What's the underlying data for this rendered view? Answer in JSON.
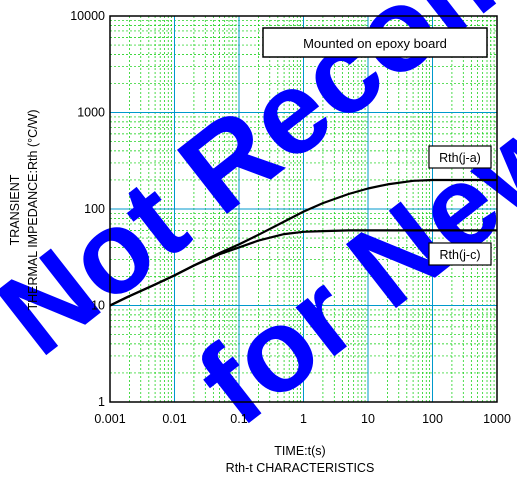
{
  "chart_data": {
    "type": "line",
    "title": "Rth-t CHARACTERISTICS",
    "xlabel": "TIME:t(s)",
    "ylabel_lines": [
      "TRANSIENT",
      "THERMAL IMPEDANCE:Rth  (°C/W)"
    ],
    "x_scale": "log",
    "y_scale": "log",
    "xlim": [
      0.001,
      1000
    ],
    "ylim": [
      1,
      10000
    ],
    "x_ticks": [
      "0.001",
      "0.01",
      "0.1",
      "1",
      "10",
      "100",
      "1000"
    ],
    "y_ticks": [
      "1",
      "10",
      "100",
      "1000",
      "10000"
    ],
    "grid": true,
    "annotation_box": "Mounted on epoxy board",
    "series": [
      {
        "name": "Rth(j-a)",
        "x": [
          0.001,
          0.002,
          0.005,
          0.01,
          0.02,
          0.05,
          0.1,
          0.2,
          0.5,
          1,
          2,
          5,
          10,
          20,
          50,
          100,
          200,
          500,
          1000
        ],
        "y": [
          10,
          12.5,
          16.5,
          20.5,
          26,
          35,
          43,
          54,
          74,
          94,
          115,
          143,
          163,
          180,
          196,
          200,
          200,
          200,
          200
        ]
      },
      {
        "name": "Rth(j-c)",
        "x": [
          0.001,
          0.002,
          0.005,
          0.01,
          0.02,
          0.05,
          0.1,
          0.2,
          0.5,
          1,
          2,
          5,
          10,
          100,
          1000
        ],
        "y": [
          10,
          12.5,
          16.5,
          20.5,
          26,
          34,
          40,
          47,
          55,
          58,
          59,
          60,
          60,
          60,
          60
        ]
      }
    ],
    "colors": {
      "line": "#000000",
      "minor_grid": "#00cc00",
      "major_grid": "#0099cc",
      "watermark": "#0000ff"
    }
  },
  "watermark": "Not Recommended for New Design"
}
